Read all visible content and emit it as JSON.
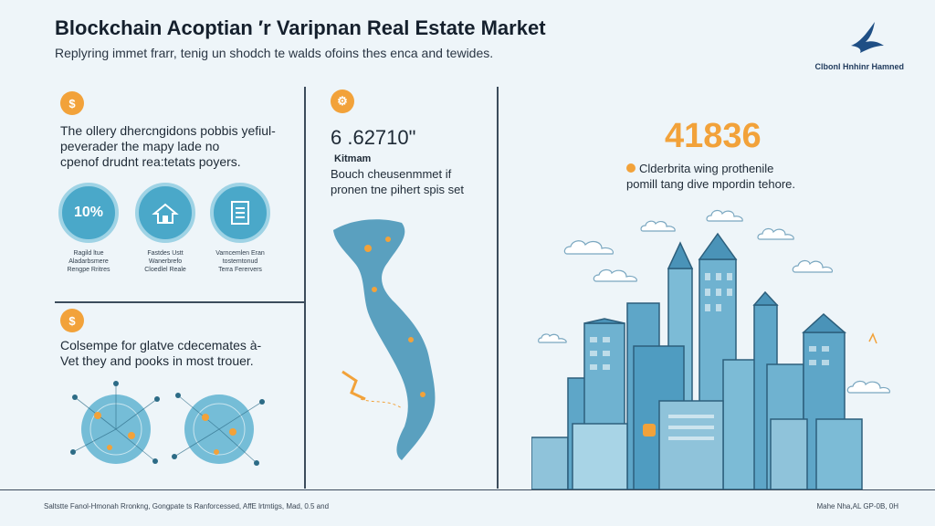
{
  "header": {
    "title": "Blockchain Acoptian ′r Varipnan Real Estate Market",
    "subtitle": "Replyring immet frarr, tenig un shodch te walds ofoins thes enca and tewides.",
    "logo_text": "Clbonl Hnhinr Hamned"
  },
  "left_panel": {
    "step1_icon": "coin-icon",
    "text1": [
      "The ollery dhercngidons pobbis yefiul-",
      "peverader the mapy lade no",
      "cpenof drudnt rea:tetats poyers."
    ],
    "circles": [
      {
        "value": "10%",
        "label": [
          "Ragild ltue",
          "Aladarbsmere",
          "Rengpe Rritres"
        ]
      },
      {
        "value": "",
        "icon": "house-icon",
        "label": [
          "Fastdes Ustt",
          "Wanerbrefo",
          "Cloedlel Reale"
        ]
      },
      {
        "value": "",
        "icon": "document-icon",
        "label": [
          "Varncemlen Eran",
          "tostemtonud",
          "Terra Ferervers"
        ]
      }
    ],
    "step2_icon": "coin-icon",
    "text2": [
      "Colsempe for glatve cdecemates à-",
      "Vet they and pooks in most trouer."
    ]
  },
  "middle_panel": {
    "step_icon": "gear-icon",
    "number": "6 .62710ʺ",
    "number_label": "Kitmam",
    "text": [
      "Bouch cheusenmmet if",
      "pronen tne pihert spis set"
    ]
  },
  "right_panel": {
    "number": "41836",
    "text": [
      "Clderbrita wing prothenile",
      "pomill tang dive mpordin tehore."
    ]
  },
  "footer": {
    "left": "Saltstte Fanol-Hmonah Rronkng, Gongpate ts Ranforcessed, AffE lrtmtigs, Mad, 0.5 and",
    "right": "Mahe Nha,AL GP-0B, 0H"
  },
  "colors": {
    "accent": "#f2a23a",
    "teal": "#4aa8c9",
    "background": "#eef5f9"
  }
}
